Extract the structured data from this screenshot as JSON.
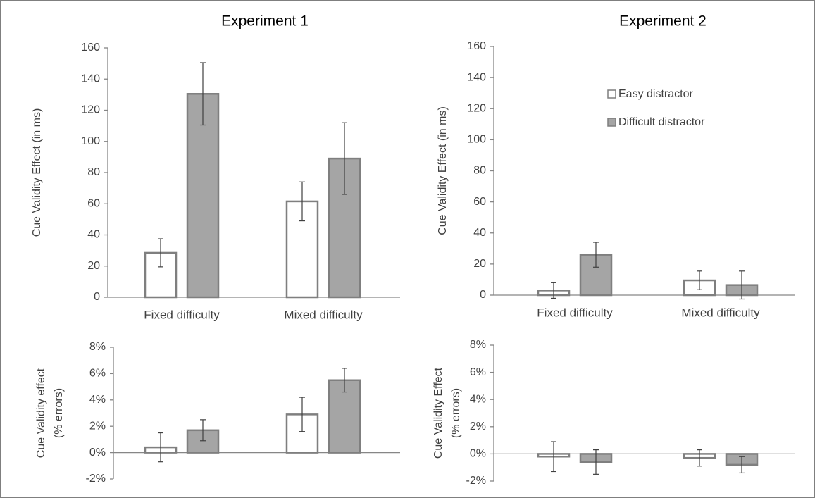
{
  "chart_data": [
    {
      "type": "bar",
      "panel": "Experiment 1 RT",
      "title": "Experiment 1",
      "ylabel": "Cue Validity Effect (in ms)",
      "ylim": [
        0,
        160
      ],
      "yticks": [
        "0",
        "20",
        "40",
        "60",
        "80",
        "100",
        "120",
        "140",
        "160"
      ],
      "categories": [
        "Fixed difficulty",
        "Mixed difficulty"
      ],
      "series": [
        {
          "values": [
            28.5,
            61.5
          ],
          "errors": [
            9,
            12.5
          ]
        },
        {
          "values": [
            130.5,
            89
          ],
          "errors": [
            20,
            23
          ]
        }
      ]
    },
    {
      "type": "bar",
      "panel": "Experiment 2 RT",
      "title": "Experiment 2",
      "ylabel": "Cue Validity Effect (in ms)",
      "ylim": [
        0,
        160
      ],
      "yticks": [
        "0",
        "20",
        "40",
        "60",
        "80",
        "100",
        "120",
        "140",
        "160"
      ],
      "categories": [
        "Fixed difficulty",
        "Mixed difficulty"
      ],
      "legend": {
        "position": "top-right",
        "entries": [
          "Easy distractor",
          "Difficult distractor"
        ]
      },
      "series": [
        {
          "name": "Easy distractor",
          "values": [
            3,
            9.5
          ],
          "errors": [
            5,
            6
          ]
        },
        {
          "name": "Difficult distractor",
          "values": [
            26,
            6.5
          ],
          "errors": [
            8,
            9
          ]
        }
      ]
    },
    {
      "type": "bar",
      "panel": "Experiment 1 errors",
      "ylabel": "Cue Validity effect\n(% errors)",
      "ylim": [
        -2,
        8
      ],
      "yticks": [
        "-2%",
        "0%",
        "2%",
        "4%",
        "6%",
        "8%"
      ],
      "categories": [
        "Fixed difficulty",
        "Mixed difficulty"
      ],
      "series": [
        {
          "values": [
            0.4,
            2.9
          ],
          "errors": [
            1.1,
            1.3
          ]
        },
        {
          "values": [
            1.7,
            5.5
          ],
          "errors": [
            0.8,
            0.9
          ]
        }
      ]
    },
    {
      "type": "bar",
      "panel": "Experiment 2 errors",
      "ylabel": "Cue Validity Effect\n(% errors)",
      "ylim": [
        -2,
        8
      ],
      "yticks": [
        "-2%",
        "0%",
        "2%",
        "4%",
        "6%",
        "8%"
      ],
      "categories": [
        "Fixed difficulty",
        "Mixed difficulty"
      ],
      "series": [
        {
          "values": [
            -0.2,
            -0.3
          ],
          "errors": [
            1.1,
            0.6
          ]
        },
        {
          "values": [
            -0.6,
            -0.8
          ],
          "errors": [
            0.9,
            0.6
          ]
        }
      ]
    }
  ],
  "colors": {
    "easy_fill": "#ffffff",
    "difficult_fill": "#a5a5a5",
    "bar_stroke": "#7f7f7f",
    "axis": "#868686",
    "error_bar": "#404040",
    "text": "#404040"
  }
}
